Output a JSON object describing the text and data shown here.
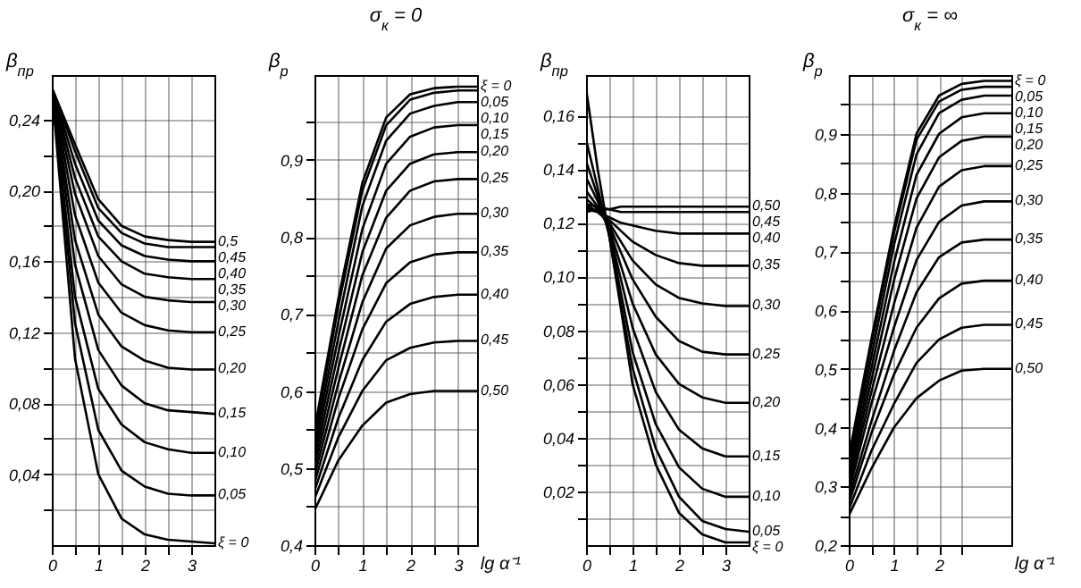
{
  "chart_data": [
    {
      "type": "line",
      "ylabel": "β$_{пр}$",
      "x": [
        0,
        0.5,
        1,
        1.5,
        2,
        2.5,
        3,
        3.5
      ],
      "xlim": [
        0,
        3.5
      ],
      "ylim": [
        0,
        0.265
      ],
      "grid": true,
      "xticks": [
        0,
        {
          "value": 0.5,
          "label": null
        },
        1,
        {
          "value": 1.5,
          "label": null
        },
        2,
        {
          "value": 2.5,
          "label": null
        },
        3
      ],
      "yticks": [
        {
          "value": 0.02,
          "label": null
        },
        {
          "value": 0.04,
          "label": "0,04"
        },
        {
          "value": 0.06,
          "label": null
        },
        {
          "value": 0.08,
          "label": "0,08"
        },
        {
          "value": 0.1,
          "label": null
        },
        {
          "value": 0.12,
          "label": "0,12"
        },
        {
          "value": 0.14,
          "label": null
        },
        {
          "value": 0.16,
          "label": "0,16"
        },
        {
          "value": 0.18,
          "label": null
        },
        {
          "value": 0.2,
          "label": "0,20"
        },
        {
          "value": 0.22,
          "label": null
        },
        {
          "value": 0.24,
          "label": "0,24"
        }
      ],
      "series": [
        {
          "name": "ξ = 0",
          "color": "#000000",
          "values": [
            0.258,
            0.105,
            0.04,
            0.015,
            0.006,
            0.003,
            0.002,
            0.001
          ]
        },
        {
          "name": "0,05",
          "color": "#000000",
          "values": [
            0.258,
            0.125,
            0.065,
            0.042,
            0.033,
            0.029,
            0.028,
            0.028
          ]
        },
        {
          "name": "0,10",
          "color": "#000000",
          "values": [
            0.258,
            0.14,
            0.088,
            0.068,
            0.058,
            0.054,
            0.052,
            0.052
          ]
        },
        {
          "name": "0,15",
          "color": "#000000",
          "values": [
            0.258,
            0.158,
            0.11,
            0.09,
            0.08,
            0.076,
            0.075,
            0.074
          ]
        },
        {
          "name": "0,20",
          "color": "#000000",
          "values": [
            0.258,
            0.172,
            0.13,
            0.112,
            0.104,
            0.1,
            0.099,
            0.099
          ]
        },
        {
          "name": "0,25",
          "color": "#000000",
          "values": [
            0.258,
            0.186,
            0.148,
            0.131,
            0.124,
            0.121,
            0.12,
            0.12
          ]
        },
        {
          "name": "0,30",
          "color": "#000000",
          "values": [
            0.258,
            0.198,
            0.163,
            0.147,
            0.14,
            0.138,
            0.137,
            0.137
          ]
        },
        {
          "name": "0,35",
          "color": "#000000",
          "values": [
            0.258,
            0.207,
            0.174,
            0.16,
            0.153,
            0.151,
            0.15,
            0.15
          ]
        },
        {
          "name": "0,40",
          "color": "#000000",
          "values": [
            0.258,
            0.215,
            0.183,
            0.169,
            0.163,
            0.161,
            0.16,
            0.16
          ]
        },
        {
          "name": "0,45",
          "color": "#000000",
          "values": [
            0.258,
            0.222,
            0.19,
            0.176,
            0.17,
            0.168,
            0.168,
            0.168
          ]
        },
        {
          "name": "0,5",
          "color": "#000000",
          "values": [
            0.258,
            0.226,
            0.195,
            0.18,
            0.174,
            0.172,
            0.171,
            0.171
          ]
        }
      ]
    },
    {
      "type": "line",
      "title": "σ$_{к}$ = 0",
      "ylabel": "β$_{р}$",
      "xlabel": "lg α⁻¹",
      "x": [
        0,
        0.5,
        1,
        1.5,
        2,
        2.5,
        3,
        3.4
      ],
      "xlim": [
        0,
        3.4
      ],
      "ylim": [
        0.4,
        1.01
      ],
      "grid": true,
      "xticks": [
        0,
        {
          "value": 0.5,
          "label": null
        },
        1,
        {
          "value": 1.5,
          "label": null
        },
        2,
        {
          "value": 2.5,
          "label": null
        },
        3
      ],
      "yticks": [
        {
          "value": 0.4,
          "label": "0,4"
        },
        {
          "value": 0.45,
          "label": null
        },
        {
          "value": 0.5,
          "label": "0,5"
        },
        {
          "value": 0.55,
          "label": null
        },
        {
          "value": 0.6,
          "label": "0,6"
        },
        {
          "value": 0.65,
          "label": null
        },
        {
          "value": 0.7,
          "label": "0,7"
        },
        {
          "value": 0.75,
          "label": null
        },
        {
          "value": 0.8,
          "label": "0,8"
        },
        {
          "value": 0.85,
          "label": null
        },
        {
          "value": 0.9,
          "label": "0,9"
        },
        {
          "value": 0.95,
          "label": null
        }
      ],
      "series": [
        {
          "name": "ξ = 0",
          "color": "#000000",
          "values": [
            0.55,
            0.72,
            0.87,
            0.955,
            0.985,
            0.993,
            0.995,
            0.995
          ]
        },
        {
          "name": "0,05",
          "color": "#000000",
          "values": [
            0.54,
            0.71,
            0.86,
            0.945,
            0.978,
            0.987,
            0.99,
            0.99
          ]
        },
        {
          "name": "0,10",
          "color": "#000000",
          "values": [
            0.53,
            0.69,
            0.84,
            0.925,
            0.96,
            0.97,
            0.975,
            0.975
          ]
        },
        {
          "name": "0,15",
          "color": "#000000",
          "values": [
            0.52,
            0.67,
            0.81,
            0.895,
            0.93,
            0.942,
            0.945,
            0.945
          ]
        },
        {
          "name": "0,20",
          "color": "#000000",
          "values": [
            0.51,
            0.65,
            0.78,
            0.86,
            0.895,
            0.907,
            0.91,
            0.91
          ]
        },
        {
          "name": "0,25",
          "color": "#000000",
          "values": [
            0.5,
            0.63,
            0.75,
            0.825,
            0.86,
            0.872,
            0.875,
            0.875
          ]
        },
        {
          "name": "0,30",
          "color": "#000000",
          "values": [
            0.49,
            0.61,
            0.715,
            0.785,
            0.815,
            0.826,
            0.83,
            0.83
          ]
        },
        {
          "name": "0,35",
          "color": "#000000",
          "values": [
            0.48,
            0.59,
            0.68,
            0.74,
            0.767,
            0.777,
            0.78,
            0.78
          ]
        },
        {
          "name": "0,40",
          "color": "#000000",
          "values": [
            0.47,
            0.565,
            0.64,
            0.69,
            0.713,
            0.722,
            0.725,
            0.725
          ]
        },
        {
          "name": "0,45",
          "color": "#000000",
          "values": [
            0.46,
            0.54,
            0.6,
            0.64,
            0.656,
            0.663,
            0.665,
            0.665
          ]
        },
        {
          "name": "0,50",
          "color": "#000000",
          "values": [
            0.445,
            0.51,
            0.555,
            0.585,
            0.596,
            0.6,
            0.6,
            0.6
          ]
        }
      ]
    },
    {
      "type": "line",
      "ylabel": "β$_{пр}$",
      "x": [
        0,
        0.25,
        0.5,
        0.75,
        1,
        1.5,
        2,
        2.5,
        3,
        3.5
      ],
      "xlim": [
        0,
        3.5
      ],
      "ylim": [
        0,
        0.175
      ],
      "grid": true,
      "xticks": [
        0,
        {
          "value": 0.5,
          "label": null
        },
        1,
        {
          "value": 1.5,
          "label": null
        },
        2,
        {
          "value": 2.5,
          "label": null
        },
        3
      ],
      "yticks": [
        {
          "value": 0.01,
          "label": null
        },
        {
          "value": 0.02,
          "label": "0,02"
        },
        {
          "value": 0.03,
          "label": null
        },
        {
          "value": 0.04,
          "label": "0,04"
        },
        {
          "value": 0.05,
          "label": null
        },
        {
          "value": 0.06,
          "label": "0,06"
        },
        {
          "value": 0.07,
          "label": null
        },
        {
          "value": 0.08,
          "label": "0,08"
        },
        {
          "value": 0.09,
          "label": null
        },
        {
          "value": 0.1,
          "label": "0,10"
        },
        {
          "value": 0.11,
          "label": null
        },
        {
          "value": 0.12,
          "label": "0,12"
        },
        {
          "value": 0.13,
          "label": null
        },
        {
          "value": 0.14,
          "label": "0,14"
        },
        {
          "value": 0.15,
          "label": null
        },
        {
          "value": 0.16,
          "label": "0,16"
        }
      ],
      "series": [
        {
          "name": "ξ = 0",
          "color": "#000000",
          "values": [
            0.17,
            0.14,
            0.115,
            0.088,
            0.06,
            0.03,
            0.012,
            0.004,
            0.001,
            0.001
          ]
        },
        {
          "name": "0,05",
          "color": "#000000",
          "values": [
            0.151,
            0.133,
            0.115,
            0.09,
            0.066,
            0.036,
            0.018,
            0.009,
            0.006,
            0.005
          ]
        },
        {
          "name": "0,10",
          "color": "#000000",
          "values": [
            0.143,
            0.13,
            0.116,
            0.094,
            0.072,
            0.045,
            0.029,
            0.021,
            0.018,
            0.018
          ]
        },
        {
          "name": "0,15",
          "color": "#000000",
          "values": [
            0.137,
            0.128,
            0.117,
            0.099,
            0.081,
            0.057,
            0.043,
            0.036,
            0.033,
            0.033
          ]
        },
        {
          "name": "0,20",
          "color": "#000000",
          "values": [
            0.132,
            0.126,
            0.118,
            0.104,
            0.09,
            0.071,
            0.06,
            0.055,
            0.053,
            0.053
          ]
        },
        {
          "name": "0,25",
          "color": "#000000",
          "values": [
            0.129,
            0.125,
            0.119,
            0.109,
            0.099,
            0.085,
            0.076,
            0.072,
            0.071,
            0.071
          ]
        },
        {
          "name": "0,30",
          "color": "#000000",
          "values": [
            0.127,
            0.124,
            0.12,
            0.113,
            0.106,
            0.097,
            0.092,
            0.09,
            0.089,
            0.089
          ]
        },
        {
          "name": "0,35",
          "color": "#000000",
          "values": [
            0.126,
            0.124,
            0.121,
            0.117,
            0.113,
            0.108,
            0.105,
            0.104,
            0.104,
            0.104
          ]
        },
        {
          "name": "0,40",
          "color": "#000000",
          "values": [
            0.125,
            0.124,
            0.122,
            0.12,
            0.119,
            0.117,
            0.116,
            0.116,
            0.116,
            0.116
          ]
        },
        {
          "name": "0,45",
          "color": "#000000",
          "values": [
            0.127,
            0.126,
            0.125,
            0.124,
            0.124,
            0.124,
            0.124,
            0.124,
            0.124,
            0.124
          ]
        },
        {
          "name": "0,50",
          "color": "#000000",
          "values": [
            0.124,
            0.125,
            0.125,
            0.126,
            0.126,
            0.126,
            0.126,
            0.126,
            0.126,
            0.126
          ]
        }
      ]
    },
    {
      "type": "line",
      "title": "σ$_{к}$ = ∞",
      "ylabel": "β$_{р}$",
      "xlabel": "lg α⁻¹",
      "x": [
        0,
        0.5,
        1,
        1.5,
        2,
        2.5,
        3,
        3.6
      ],
      "xlim": [
        0,
        3.6
      ],
      "ylim": [
        0.2,
        1.0
      ],
      "grid": true,
      "xticks": [
        0,
        {
          "value": 0.5,
          "label": null
        },
        1,
        {
          "value": 1.5,
          "label": null
        },
        2,
        {
          "value": 2.5,
          "label": null
        }
      ],
      "yticks": [
        {
          "value": 0.2,
          "label": "0,2"
        },
        {
          "value": 0.25,
          "label": null
        },
        {
          "value": 0.3,
          "label": "0,3"
        },
        {
          "value": 0.35,
          "label": null
        },
        {
          "value": 0.4,
          "label": "0,4"
        },
        {
          "value": 0.45,
          "label": null
        },
        {
          "value": 0.5,
          "label": "0,5"
        },
        {
          "value": 0.55,
          "label": null
        },
        {
          "value": 0.6,
          "label": "0,6"
        },
        {
          "value": 0.65,
          "label": null
        },
        {
          "value": 0.7,
          "label": "0,7"
        },
        {
          "value": 0.75,
          "label": null
        },
        {
          "value": 0.8,
          "label": "0,8"
        },
        {
          "value": 0.85,
          "label": null
        },
        {
          "value": 0.9,
          "label": "0,9"
        },
        {
          "value": 0.95,
          "label": null
        }
      ],
      "series": [
        {
          "name": "ξ = 0",
          "color": "#000000",
          "values": [
            0.35,
            0.55,
            0.74,
            0.9,
            0.965,
            0.985,
            0.99,
            0.99
          ]
        },
        {
          "name": "0,05",
          "color": "#000000",
          "values": [
            0.34,
            0.54,
            0.73,
            0.89,
            0.955,
            0.975,
            0.98,
            0.98
          ]
        },
        {
          "name": "0,10",
          "color": "#000000",
          "values": [
            0.33,
            0.52,
            0.71,
            0.865,
            0.935,
            0.958,
            0.965,
            0.965
          ]
        },
        {
          "name": "0,15",
          "color": "#000000",
          "values": [
            0.32,
            0.5,
            0.68,
            0.83,
            0.9,
            0.928,
            0.935,
            0.935
          ]
        },
        {
          "name": "0,20",
          "color": "#000000",
          "values": [
            0.31,
            0.48,
            0.65,
            0.79,
            0.86,
            0.888,
            0.895,
            0.895
          ]
        },
        {
          "name": "0,25",
          "color": "#000000",
          "values": [
            0.3,
            0.46,
            0.61,
            0.74,
            0.81,
            0.838,
            0.845,
            0.845
          ]
        },
        {
          "name": "0,30",
          "color": "#000000",
          "values": [
            0.29,
            0.44,
            0.57,
            0.685,
            0.75,
            0.778,
            0.785,
            0.785
          ]
        },
        {
          "name": "0,35",
          "color": "#000000",
          "values": [
            0.28,
            0.41,
            0.53,
            0.63,
            0.69,
            0.715,
            0.72,
            0.72
          ]
        },
        {
          "name": "0,40",
          "color": "#000000",
          "values": [
            0.27,
            0.39,
            0.49,
            0.57,
            0.62,
            0.645,
            0.65,
            0.65
          ]
        },
        {
          "name": "0,45",
          "color": "#000000",
          "values": [
            0.26,
            0.36,
            0.44,
            0.51,
            0.55,
            0.57,
            0.575,
            0.575
          ]
        },
        {
          "name": "0,50",
          "color": "#000000",
          "values": [
            0.25,
            0.33,
            0.4,
            0.45,
            0.48,
            0.497,
            0.5,
            0.5
          ]
        }
      ]
    }
  ]
}
